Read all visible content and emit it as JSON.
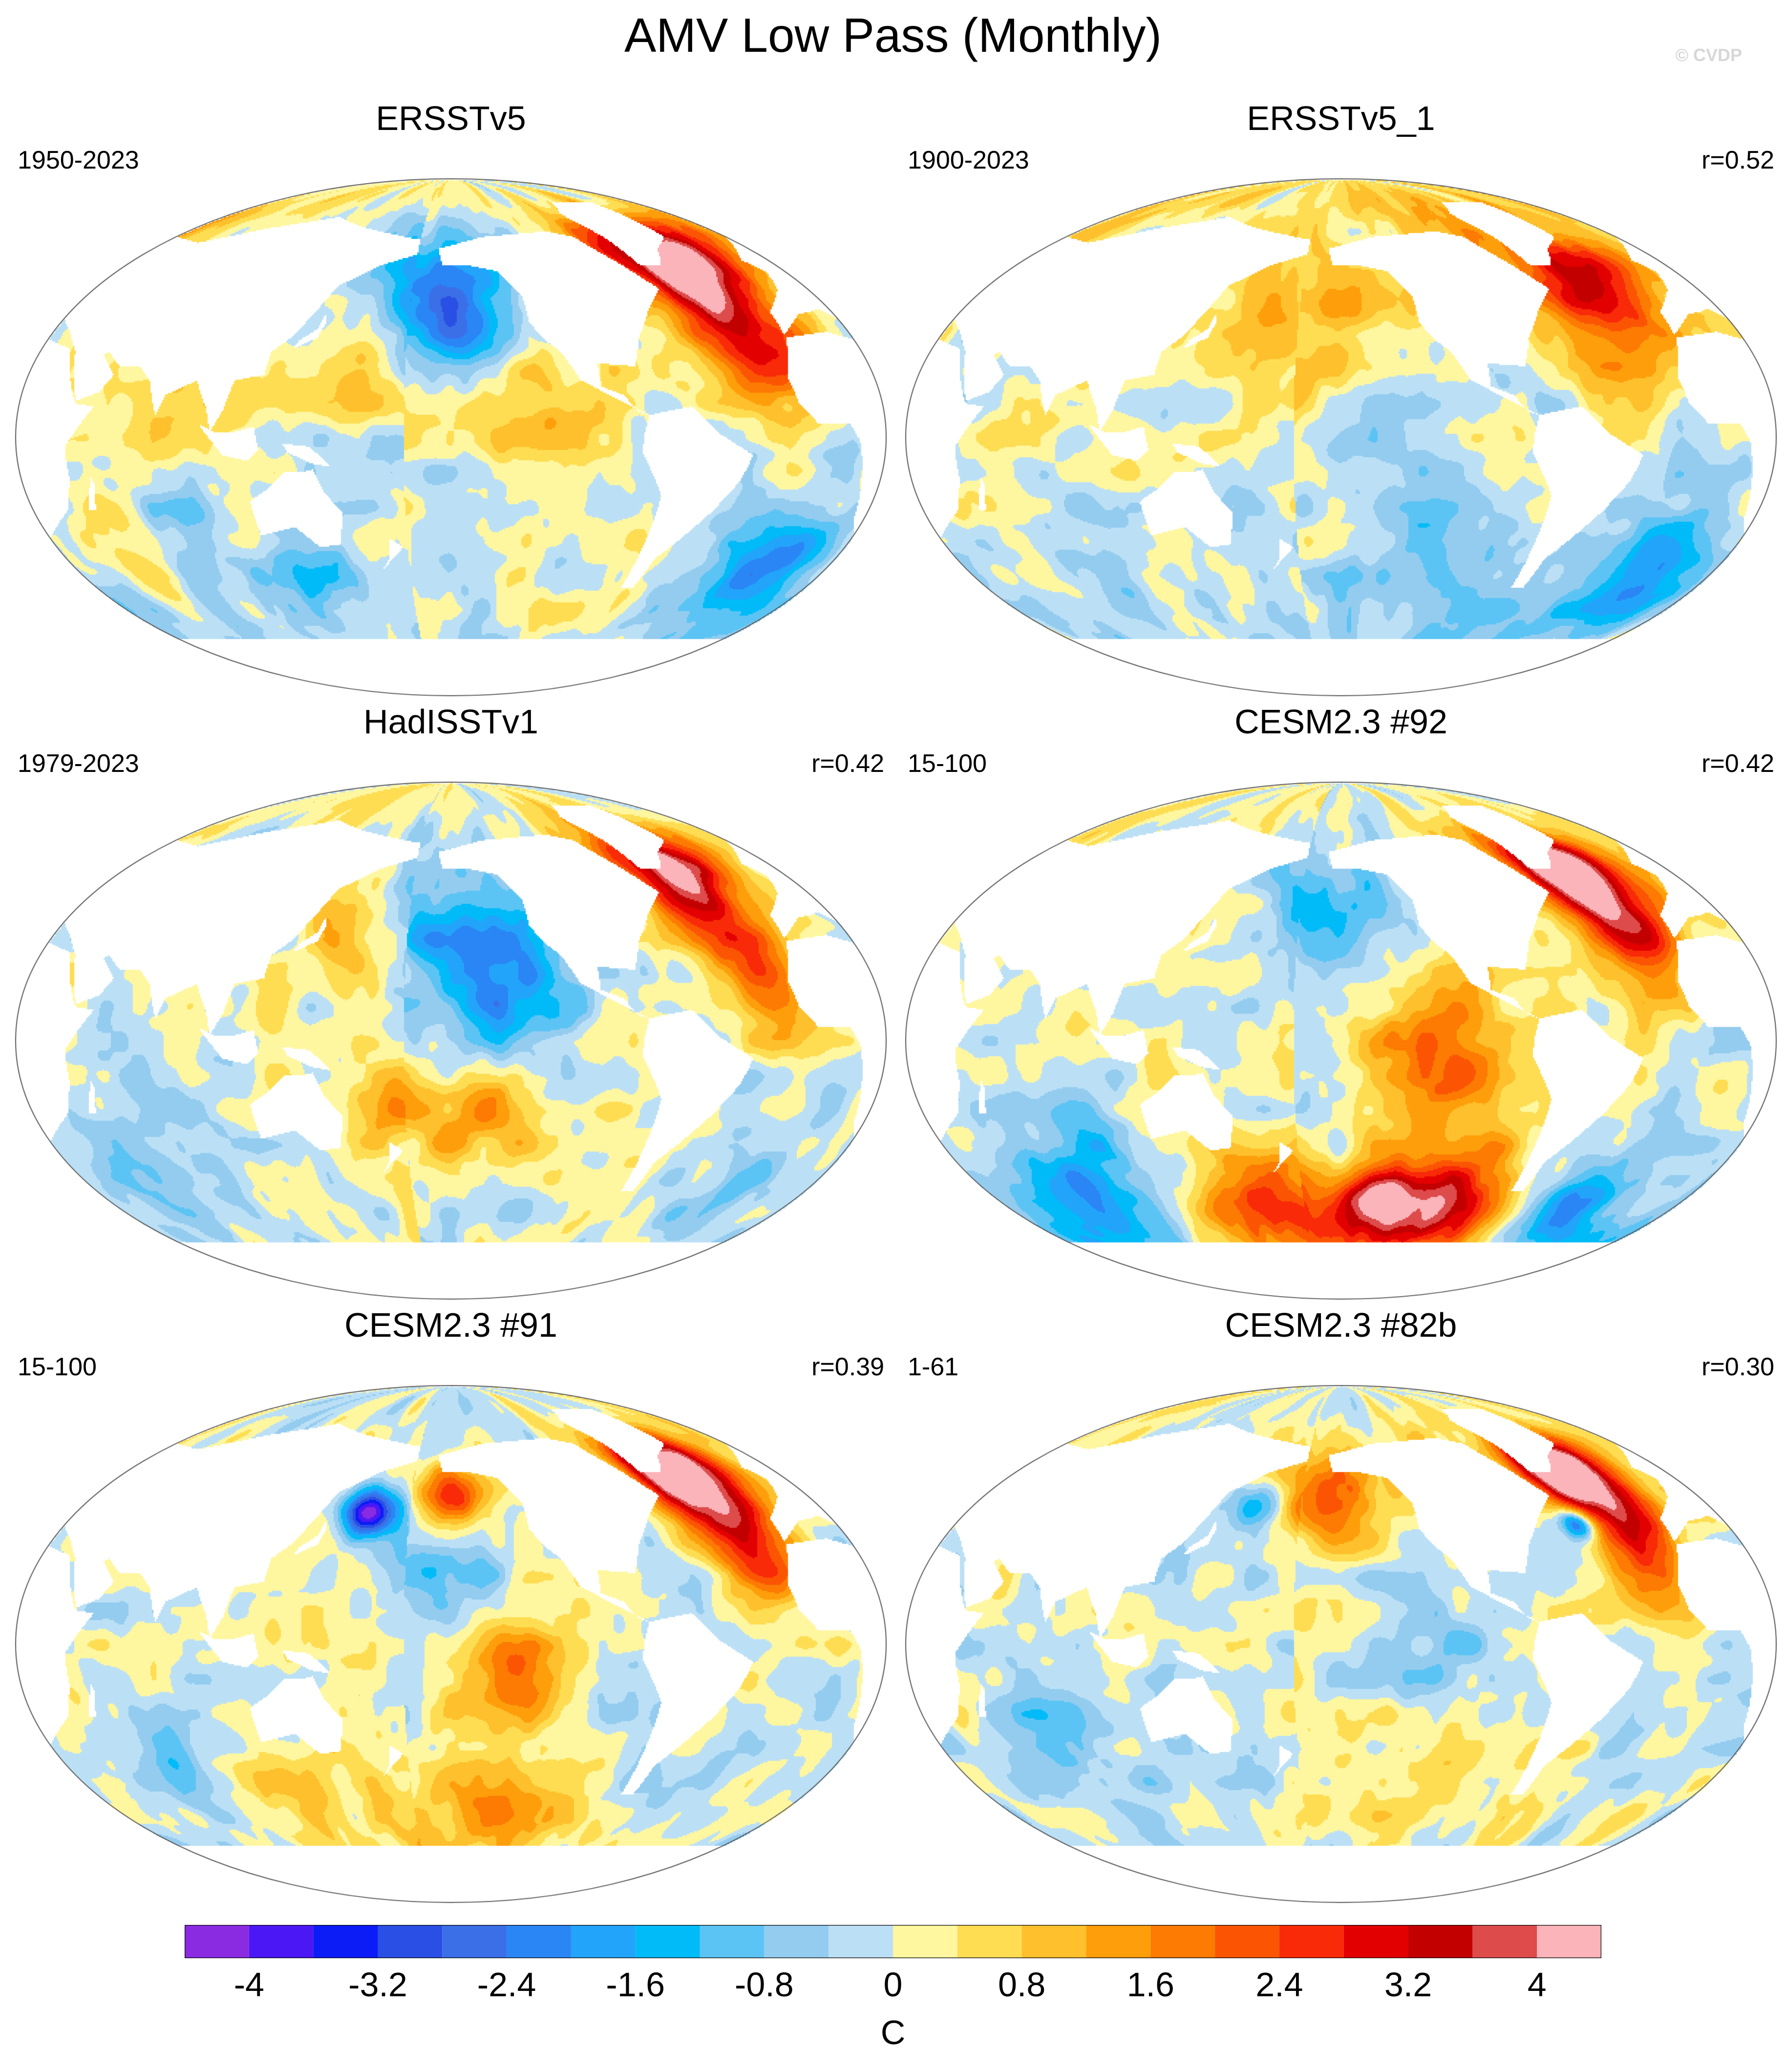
{
  "title": "AMV Low Pass (Monthly)",
  "copyright": "© CVDP",
  "panels": [
    {
      "id": "ersstv5",
      "title": "ERSSTv5",
      "period": "1950-2023",
      "corr": "",
      "pattern": [
        {
          "lat": 62,
          "lon": -38,
          "v": 3.4,
          "r": 10
        },
        {
          "lat": 50,
          "lon": -30,
          "v": 2.6,
          "r": 16
        },
        {
          "lat": 25,
          "lon": -20,
          "v": 1.6,
          "r": 15
        },
        {
          "lat": 48,
          "lon": -175,
          "v": -1.4,
          "r": 18
        },
        {
          "lat": 40,
          "lon": -150,
          "v": -1.6,
          "r": 14
        },
        {
          "lat": 5,
          "lon": -120,
          "v": 1.2,
          "r": 18
        },
        {
          "lat": 25,
          "lon": 165,
          "v": 0.9,
          "r": 14
        },
        {
          "lat": -45,
          "lon": -10,
          "v": -2.4,
          "r": 14
        },
        {
          "lat": -35,
          "lon": 50,
          "v": 1.0,
          "r": 14
        },
        {
          "lat": -35,
          "lon": 80,
          "v": -1.0,
          "r": 14
        },
        {
          "lat": -50,
          "lon": 140,
          "v": -0.8,
          "r": 16
        },
        {
          "lat": 10,
          "lon": 90,
          "v": 0.6,
          "r": 16
        }
      ]
    },
    {
      "id": "ersstv5_1",
      "title": "ERSSTv5_1",
      "period": "1900-2023",
      "corr": "r=0.52",
      "pattern": [
        {
          "lat": 60,
          "lon": -35,
          "v": 2.0,
          "r": 14
        },
        {
          "lat": 40,
          "lon": -35,
          "v": 1.8,
          "r": 18
        },
        {
          "lat": 40,
          "lon": -170,
          "v": 1.2,
          "r": 22
        },
        {
          "lat": 5,
          "lon": -140,
          "v": -0.7,
          "r": 18
        },
        {
          "lat": -45,
          "lon": -15,
          "v": -2.2,
          "r": 14
        },
        {
          "lat": -50,
          "lon": -120,
          "v": -0.9,
          "r": 22
        },
        {
          "lat": -35,
          "lon": 90,
          "v": -0.6,
          "r": 18
        },
        {
          "lat": 10,
          "lon": 80,
          "v": 0.5,
          "r": 20
        }
      ]
    },
    {
      "id": "hadisst",
      "title": "HadISSTv1",
      "period": "1979-2023",
      "corr": "r=0.42",
      "pattern": [
        {
          "lat": 62,
          "lon": -40,
          "v": 3.6,
          "r": 9
        },
        {
          "lat": 42,
          "lon": -35,
          "v": 2.5,
          "r": 14
        },
        {
          "lat": 20,
          "lon": -25,
          "v": 2.0,
          "r": 12
        },
        {
          "lat": 30,
          "lon": -155,
          "v": -2.0,
          "r": 18
        },
        {
          "lat": 10,
          "lon": -130,
          "v": -1.5,
          "r": 16
        },
        {
          "lat": -25,
          "lon": -145,
          "v": 1.5,
          "r": 15
        },
        {
          "lat": -20,
          "lon": 170,
          "v": 1.2,
          "r": 14
        },
        {
          "lat": 35,
          "lon": 155,
          "v": 1.2,
          "r": 12
        },
        {
          "lat": -40,
          "lon": 60,
          "v": -1.0,
          "r": 16
        },
        {
          "lat": -45,
          "lon": -20,
          "v": -0.6,
          "r": 14
        }
      ]
    },
    {
      "id": "cesm92",
      "title": "CESM2.3 #92",
      "period": "15-100",
      "corr": "r=0.42",
      "pattern": [
        {
          "lat": 62,
          "lon": -40,
          "v": 4.2,
          "r": 8
        },
        {
          "lat": 50,
          "lon": -30,
          "v": 3.0,
          "r": 12
        },
        {
          "lat": 30,
          "lon": -25,
          "v": 2.0,
          "r": 14
        },
        {
          "lat": 42,
          "lon": -165,
          "v": -1.5,
          "r": 14
        },
        {
          "lat": -10,
          "lon": -120,
          "v": 2.0,
          "r": 22
        },
        {
          "lat": -55,
          "lon": -140,
          "v": 4.3,
          "r": 8
        },
        {
          "lat": -58,
          "lon": -100,
          "v": 3.2,
          "r": 14
        },
        {
          "lat": -55,
          "lon": 160,
          "v": 2.5,
          "r": 14
        },
        {
          "lat": -60,
          "lon": -40,
          "v": -2.4,
          "r": 12
        },
        {
          "lat": -58,
          "lon": 60,
          "v": -1.8,
          "r": 14
        },
        {
          "lat": -40,
          "lon": 90,
          "v": -1.0,
          "r": 14
        }
      ]
    },
    {
      "id": "cesm91",
      "title": "CESM2.3 #91",
      "period": "15-100",
      "corr": "r=0.39",
      "pattern": [
        {
          "lat": 62,
          "lon": -40,
          "v": 4.3,
          "r": 8
        },
        {
          "lat": 50,
          "lon": -30,
          "v": 3.2,
          "r": 12
        },
        {
          "lat": 30,
          "lon": -25,
          "v": 2.0,
          "r": 12
        },
        {
          "lat": 52,
          "lon": -160,
          "v": 3.4,
          "r": 9
        },
        {
          "lat": 45,
          "lon": 160,
          "v": -3.6,
          "r": 6
        },
        {
          "lat": 38,
          "lon": -165,
          "v": -1.4,
          "r": 16
        },
        {
          "lat": -10,
          "lon": -135,
          "v": 2.2,
          "r": 14
        },
        {
          "lat": -55,
          "lon": -140,
          "v": 1.6,
          "r": 14
        },
        {
          "lat": -40,
          "lon": 60,
          "v": -0.8,
          "r": 16
        },
        {
          "lat": -50,
          "lon": 120,
          "v": 1.0,
          "r": 14
        }
      ]
    },
    {
      "id": "cesm82b",
      "title": "CESM2.3 #82b",
      "period": "1-61",
      "corr": "r=0.30",
      "pattern": [
        {
          "lat": 62,
          "lon": -38,
          "v": 4.2,
          "r": 8
        },
        {
          "lat": 50,
          "lon": -30,
          "v": 3.0,
          "r": 12
        },
        {
          "lat": 42,
          "lon": -50,
          "v": -3.4,
          "r": 4
        },
        {
          "lat": 30,
          "lon": -25,
          "v": 1.8,
          "r": 12
        },
        {
          "lat": 50,
          "lon": -165,
          "v": 2.2,
          "r": 12
        },
        {
          "lat": 48,
          "lon": 160,
          "v": -2.0,
          "r": 6
        },
        {
          "lat": -5,
          "lon": -120,
          "v": -0.8,
          "r": 18
        },
        {
          "lat": -40,
          "lon": -130,
          "v": 0.8,
          "r": 18
        },
        {
          "lat": -35,
          "lon": 75,
          "v": -0.7,
          "r": 18
        }
      ]
    }
  ],
  "colorbar": {
    "unit": "C",
    "tick_labels": [
      "-4",
      "-3.2",
      "-2.4",
      "-1.6",
      "-0.8",
      "0",
      "0.8",
      "1.6",
      "2.4",
      "3.2",
      "4"
    ],
    "levels": [
      -4.4,
      -4.0,
      -3.6,
      -3.2,
      -2.8,
      -2.4,
      -2.0,
      -1.6,
      -1.2,
      -0.8,
      -0.4,
      0,
      0.4,
      0.8,
      1.2,
      1.6,
      2.0,
      2.4,
      2.8,
      3.2,
      3.6,
      4.0,
      4.4
    ],
    "colors": [
      "#8a2be2",
      "#4b18f5",
      "#0b1cf6",
      "#2a4fe4",
      "#3b6fe7",
      "#2a85f5",
      "#22a4fb",
      "#00bbf7",
      "#5bc4f4",
      "#94ccef",
      "#bbe0f6",
      "#fff6a0",
      "#fedd52",
      "#fec02c",
      "#fe9e0a",
      "#fd7a03",
      "#fb5503",
      "#f92a07",
      "#e30000",
      "#c30000",
      "#dd4b4b",
      "#fbb4b9"
    ]
  }
}
